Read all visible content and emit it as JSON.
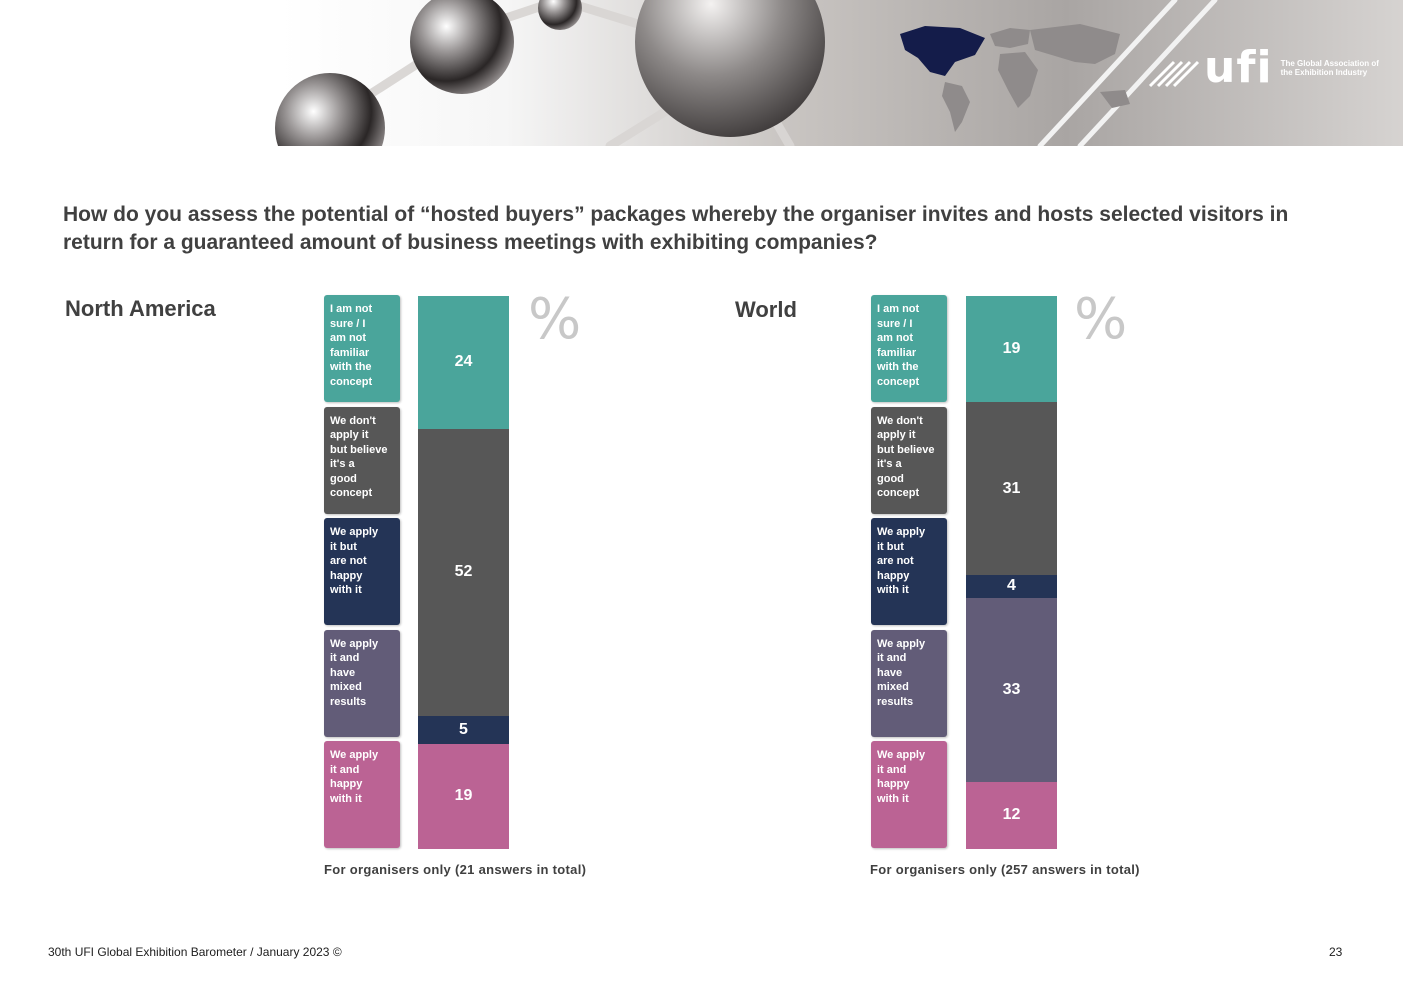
{
  "brand": {
    "logo_mark": "ufi",
    "logo_text": "The Global Association of the Exhibition Industry"
  },
  "question": "How do you assess the potential of “hosted buyers” packages whereby the organiser invites and hosts selected visitors in return for a guaranteed amount of business meetings with exhibiting companies?",
  "colors": {
    "not_sure": "#4aa59b",
    "dont_apply_good": "#575757",
    "apply_not_happy": "#243456",
    "apply_mixed": "#625c78",
    "apply_happy": "#bb6394"
  },
  "chart_data": [
    {
      "type": "bar",
      "stacked": true,
      "unit": "%",
      "title": "North America",
      "categories": [
        "I am not sure / I am not familiar with the concept",
        "We don't apply it but believe it's a good concept",
        "We apply it but are not happy with it",
        "We apply it and have mixed results",
        "We apply it and happy with it"
      ],
      "values": [
        24,
        52,
        5,
        0,
        19
      ],
      "data_labels": [
        "24",
        "52",
        "5",
        "",
        "19"
      ],
      "note": "For organisers only (21 answers in total)"
    },
    {
      "type": "bar",
      "stacked": true,
      "unit": "%",
      "title": "World",
      "categories": [
        "I am not sure / I am not familiar with the concept",
        "We don't apply it but believe it's a good concept",
        "We apply it but are not happy with it",
        "We apply it and have mixed results",
        "We apply it and happy with it"
      ],
      "values": [
        19,
        31,
        4,
        33,
        12
      ],
      "data_labels": [
        "19",
        "31",
        "4",
        "33",
        "12"
      ],
      "note": "For organisers only (257 answers in total)"
    }
  ],
  "legend_lines": [
    [
      "I am not",
      "sure / I",
      "am not",
      "familiar",
      "with the",
      "concept"
    ],
    [
      "We don't",
      "apply it",
      "but believe",
      "it's a",
      "good",
      "concept"
    ],
    [
      "We apply",
      "it but",
      "are not",
      "happy",
      "with it"
    ],
    [
      "We apply",
      "it and",
      "have",
      "mixed",
      "results"
    ],
    [
      "We apply",
      "it and",
      "happy",
      "with it"
    ]
  ],
  "footer": {
    "source": "30th UFI Global Exhibition Barometer / January 2023 ©",
    "page_number": "23"
  }
}
